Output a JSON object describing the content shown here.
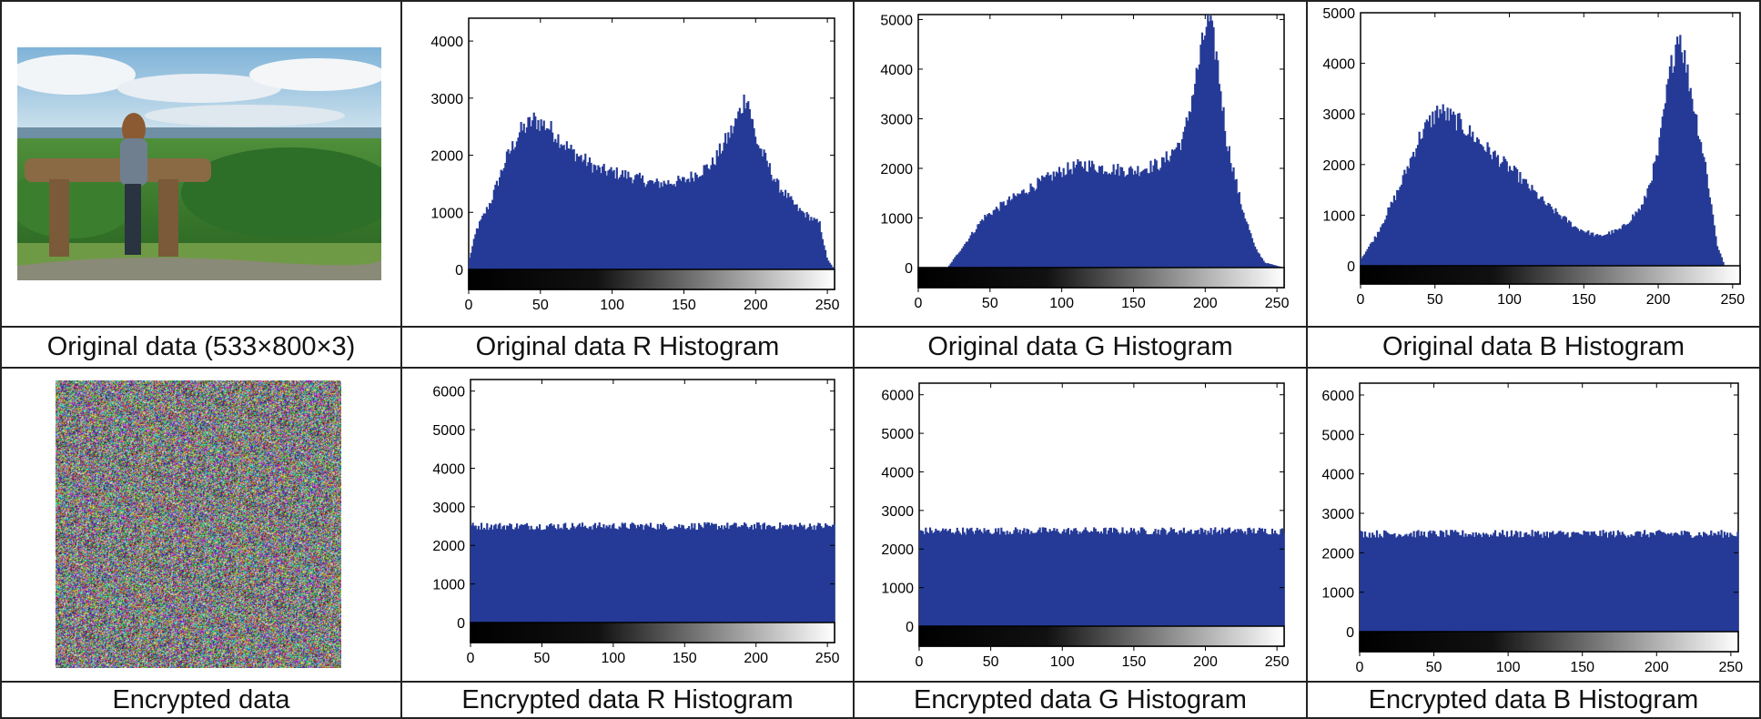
{
  "captions": {
    "r1": [
      "Original data (533×800×3)",
      "Original data R Histogram",
      "Original data G Histogram",
      "Original data B Histogram"
    ],
    "r2": [
      "Encrypted data",
      "Encrypted data R Histogram",
      "Encrypted data G Histogram",
      "Encrypted data B Histogram"
    ]
  },
  "images": {
    "original": {
      "name": "landscape-photo",
      "content": "woman leaning on wooden rail overlooking green valley under cloudy sky"
    },
    "encrypted": {
      "name": "noise-image",
      "content": "uniform colored noise"
    }
  },
  "colors": {
    "bar": "#253a96",
    "axis": "#000000",
    "border": "#222222"
  },
  "chart_data": [
    {
      "id": "orig-r",
      "type": "bar",
      "title": "Original data R Histogram",
      "x_ticks": [
        0,
        50,
        100,
        150,
        200,
        250
      ],
      "y_ticks": [
        0,
        1000,
        2000,
        3000,
        4000
      ],
      "xlim": [
        0,
        255
      ],
      "ylim": [
        0,
        4400
      ],
      "colorbar": "grayscale",
      "profile": [
        [
          0,
          200
        ],
        [
          5,
          700
        ],
        [
          15,
          1200
        ],
        [
          25,
          1900
        ],
        [
          35,
          2400
        ],
        [
          45,
          2620
        ],
        [
          55,
          2500
        ],
        [
          70,
          2100
        ],
        [
          90,
          1750
        ],
        [
          110,
          1650
        ],
        [
          130,
          1500
        ],
        [
          150,
          1550
        ],
        [
          170,
          1850
        ],
        [
          185,
          2500
        ],
        [
          194,
          3080
        ],
        [
          200,
          2300
        ],
        [
          215,
          1500
        ],
        [
          230,
          1050
        ],
        [
          245,
          800
        ],
        [
          250,
          200
        ],
        [
          255,
          0
        ]
      ]
    },
    {
      "id": "orig-g",
      "type": "bar",
      "title": "Original data G Histogram",
      "x_ticks": [
        0,
        50,
        100,
        150,
        200,
        250
      ],
      "y_ticks": [
        0,
        1000,
        2000,
        3000,
        4000,
        5000
      ],
      "xlim": [
        0,
        255
      ],
      "ylim": [
        0,
        5100
      ],
      "colorbar": "grayscale",
      "profile": [
        [
          0,
          0
        ],
        [
          20,
          0
        ],
        [
          25,
          200
        ],
        [
          35,
          600
        ],
        [
          45,
          1000
        ],
        [
          60,
          1300
        ],
        [
          80,
          1650
        ],
        [
          100,
          1950
        ],
        [
          115,
          2080
        ],
        [
          130,
          2000
        ],
        [
          150,
          1950
        ],
        [
          170,
          2100
        ],
        [
          185,
          2600
        ],
        [
          195,
          4000
        ],
        [
          202,
          5050
        ],
        [
          208,
          4300
        ],
        [
          215,
          2600
        ],
        [
          225,
          1300
        ],
        [
          235,
          400
        ],
        [
          242,
          100
        ],
        [
          255,
          0
        ]
      ]
    },
    {
      "id": "orig-b",
      "type": "bar",
      "title": "Original data B Histogram",
      "x_ticks": [
        0,
        50,
        100,
        150,
        200,
        250
      ],
      "y_ticks": [
        0,
        1000,
        2000,
        3000,
        4000,
        5000
      ],
      "xlim": [
        0,
        255
      ],
      "ylim": [
        0,
        5000
      ],
      "colorbar": "grayscale",
      "profile": [
        [
          0,
          150
        ],
        [
          10,
          600
        ],
        [
          25,
          1500
        ],
        [
          40,
          2600
        ],
        [
          52,
          3080
        ],
        [
          65,
          2850
        ],
        [
          85,
          2300
        ],
        [
          105,
          1800
        ],
        [
          125,
          1200
        ],
        [
          145,
          750
        ],
        [
          160,
          580
        ],
        [
          175,
          720
        ],
        [
          190,
          1200
        ],
        [
          200,
          2200
        ],
        [
          208,
          3800
        ],
        [
          214,
          4680
        ],
        [
          222,
          3500
        ],
        [
          232,
          2000
        ],
        [
          240,
          400
        ],
        [
          245,
          0
        ],
        [
          255,
          0
        ]
      ]
    },
    {
      "id": "enc-r",
      "type": "bar",
      "title": "Encrypted data R Histogram",
      "x_ticks": [
        0,
        50,
        100,
        150,
        200,
        250
      ],
      "y_ticks": [
        0,
        1000,
        2000,
        3000,
        4000,
        5000,
        6000
      ],
      "xlim": [
        0,
        255
      ],
      "ylim": [
        0,
        6300
      ],
      "colorbar": "grayscale",
      "profile": [
        [
          0,
          2500
        ],
        [
          255,
          2500
        ]
      ]
    },
    {
      "id": "enc-g",
      "type": "bar",
      "title": "Encrypted data G Histogram",
      "x_ticks": [
        0,
        50,
        100,
        150,
        200,
        250
      ],
      "y_ticks": [
        0,
        1000,
        2000,
        3000,
        4000,
        5000,
        6000
      ],
      "xlim": [
        0,
        255
      ],
      "ylim": [
        0,
        6300
      ],
      "colorbar": "grayscale",
      "profile": [
        [
          0,
          2470
        ],
        [
          255,
          2470
        ]
      ]
    },
    {
      "id": "enc-b",
      "type": "bar",
      "title": "Encrypted data B Histogram",
      "x_ticks": [
        0,
        50,
        100,
        150,
        200,
        250
      ],
      "y_ticks": [
        0,
        1000,
        2000,
        3000,
        4000,
        5000,
        6000
      ],
      "xlim": [
        0,
        255
      ],
      "ylim": [
        0,
        6300
      ],
      "colorbar": "grayscale",
      "profile": [
        [
          0,
          2480
        ],
        [
          255,
          2480
        ]
      ]
    }
  ]
}
